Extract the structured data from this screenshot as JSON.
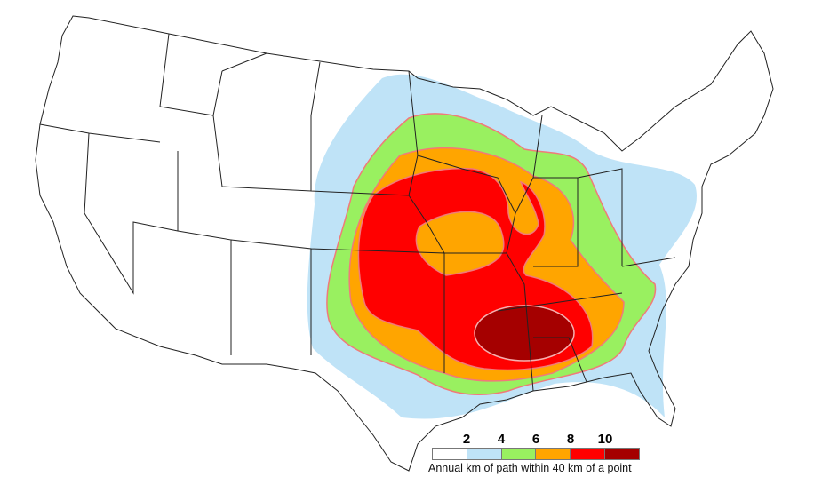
{
  "map": {
    "region": "contiguous-united-states",
    "zones": [
      {
        "min": 0,
        "max": 2,
        "color": "#ffffff"
      },
      {
        "min": 2,
        "max": 4,
        "color": "#bfe3f7"
      },
      {
        "min": 4,
        "max": 6,
        "color": "#99f060"
      },
      {
        "min": 6,
        "max": 8,
        "color": "#ffa500"
      },
      {
        "min": 8,
        "max": 10,
        "color": "#ff0000"
      },
      {
        "min": 10,
        "max": null,
        "color": "#a50000"
      }
    ],
    "contour_line_color": "#f07a7a"
  },
  "legend": {
    "ticks": [
      "2",
      "4",
      "6",
      "8",
      "10"
    ],
    "caption": "Annual km of path within 40 km of a point"
  }
}
